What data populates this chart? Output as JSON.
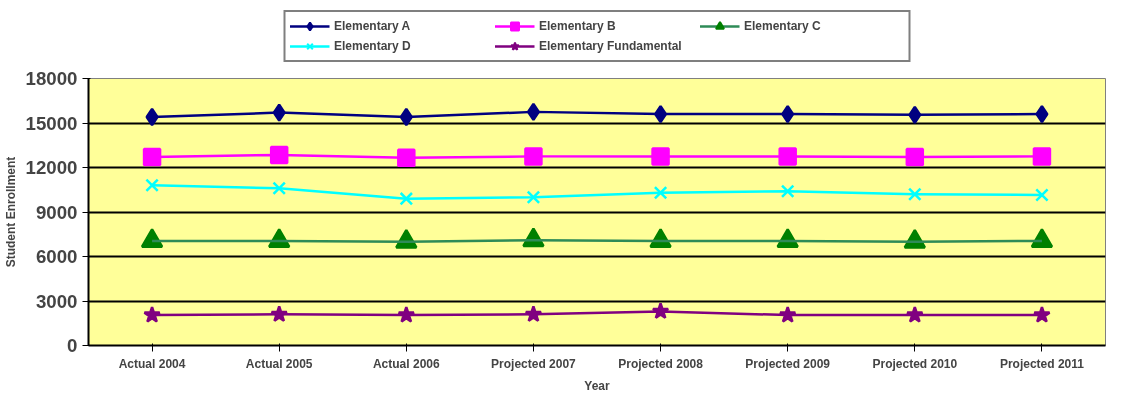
{
  "chart_data": {
    "type": "line",
    "xlabel": "Year",
    "ylabel": "Student Enrollment",
    "categories": [
      "Actual 2004",
      "Actual 2005",
      "Actual 2006",
      "Projected 2007",
      "Projected 2008",
      "Projected 2009",
      "Projected 2010",
      "Projected 2011"
    ],
    "series": [
      {
        "name": "Elementary A",
        "color": "#000080",
        "marker": "diamond",
        "values": [
          15400,
          15700,
          15400,
          15750,
          15600,
          15600,
          15550,
          15600
        ]
      },
      {
        "name": "Elementary B",
        "color": "#ff00ff",
        "marker": "square",
        "values": [
          12700,
          12850,
          12650,
          12750,
          12750,
          12750,
          12700,
          12750
        ]
      },
      {
        "name": "Elementary C",
        "color": "#2e8b57",
        "marker": "triangle",
        "values": [
          7050,
          7050,
          7000,
          7100,
          7050,
          7050,
          7000,
          7050
        ]
      },
      {
        "name": "Elementary D",
        "color": "#00ffff",
        "marker": "cross",
        "values": [
          10800,
          10600,
          9900,
          10000,
          10300,
          10400,
          10200,
          10150
        ]
      },
      {
        "name": "Elementary Fundamental",
        "color": "#800080",
        "marker": "star",
        "values": [
          2050,
          2100,
          2050,
          2100,
          2300,
          2050,
          2050,
          2050
        ]
      }
    ],
    "ylim": [
      0,
      18000
    ],
    "yticks": [
      0,
      3000,
      6000,
      9000,
      12000,
      15000,
      18000
    ],
    "grid": "y",
    "legend": "top",
    "line_style": "solid"
  }
}
